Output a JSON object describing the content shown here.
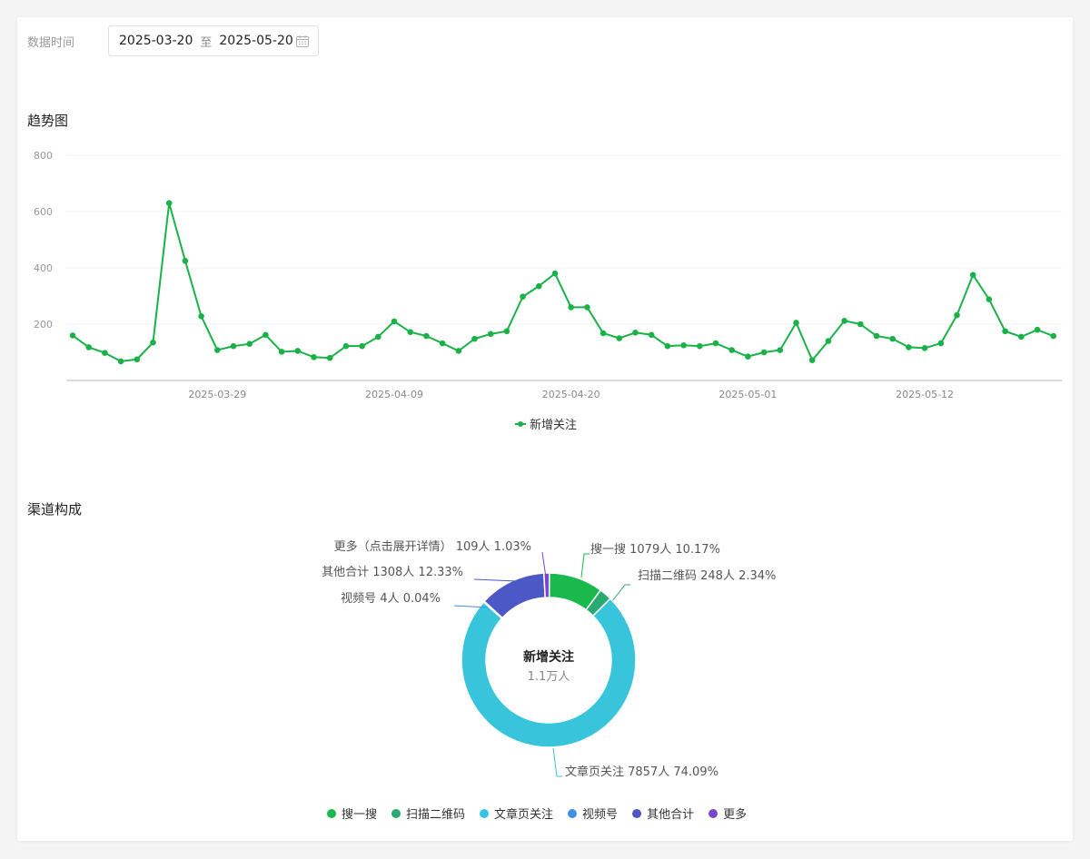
{
  "filter": {
    "label": "数据时间",
    "start_date": "2025-03-20",
    "separator": "至",
    "end_date": "2025-05-20"
  },
  "trend": {
    "title": "趋势图"
  },
  "channel": {
    "title": "渠道构成"
  },
  "chart_data": [
    {
      "type": "line",
      "title": "趋势图",
      "ylim": [
        0,
        800
      ],
      "y_ticks": [
        200,
        400,
        600,
        800
      ],
      "x_ticks": [
        "2025-03-29",
        "2025-04-09",
        "2025-04-20",
        "2025-05-01",
        "2025-05-12"
      ],
      "grid": true,
      "legend_position": "bottom-center",
      "x_start": "2025-03-20",
      "series": [
        {
          "name": "新增关注",
          "color": "#1ab248",
          "values": [
            160,
            118,
            98,
            68,
            75,
            135,
            630,
            425,
            228,
            108,
            122,
            130,
            162,
            102,
            105,
            83,
            80,
            122,
            122,
            155,
            210,
            172,
            158,
            132,
            105,
            148,
            165,
            175,
            298,
            335,
            380,
            260,
            260,
            168,
            150,
            170,
            162,
            122,
            125,
            122,
            132,
            108,
            85,
            100,
            108,
            205,
            72,
            140,
            212,
            200,
            158,
            148,
            118,
            115,
            132,
            232,
            375,
            288,
            175,
            155,
            180,
            158
          ]
        }
      ]
    },
    {
      "type": "pie",
      "title": "渠道构成",
      "center_label": "新增关注",
      "center_value": "1.1万人",
      "legend_position": "bottom-center",
      "slices": [
        {
          "name": "搜一搜",
          "value": 1079,
          "percent": "10.17%",
          "label": "搜一搜 1079人 10.17%",
          "color": "#1ab94e"
        },
        {
          "name": "扫描二维码",
          "value": 248,
          "percent": "2.34%",
          "label": "扫描二维码 248人 2.34%",
          "color": "#2aaa72"
        },
        {
          "name": "文章页关注",
          "value": 7857,
          "percent": "74.09%",
          "label": "文章页关注 7857人 74.09%",
          "color": "#38c4da"
        },
        {
          "name": "视频号",
          "value": 4,
          "percent": "0.04%",
          "label": "视频号 4人 0.04%",
          "color": "#4190e8"
        },
        {
          "name": "其他合计",
          "value": 1308,
          "percent": "12.33%",
          "label": "其他合计 1308人 12.33%",
          "color": "#4b58c6"
        },
        {
          "name": "更多",
          "value": 109,
          "percent": "1.03%",
          "label": "更多（点击展开详情） 109人 1.03%",
          "color": "#7a47cc"
        }
      ]
    }
  ]
}
